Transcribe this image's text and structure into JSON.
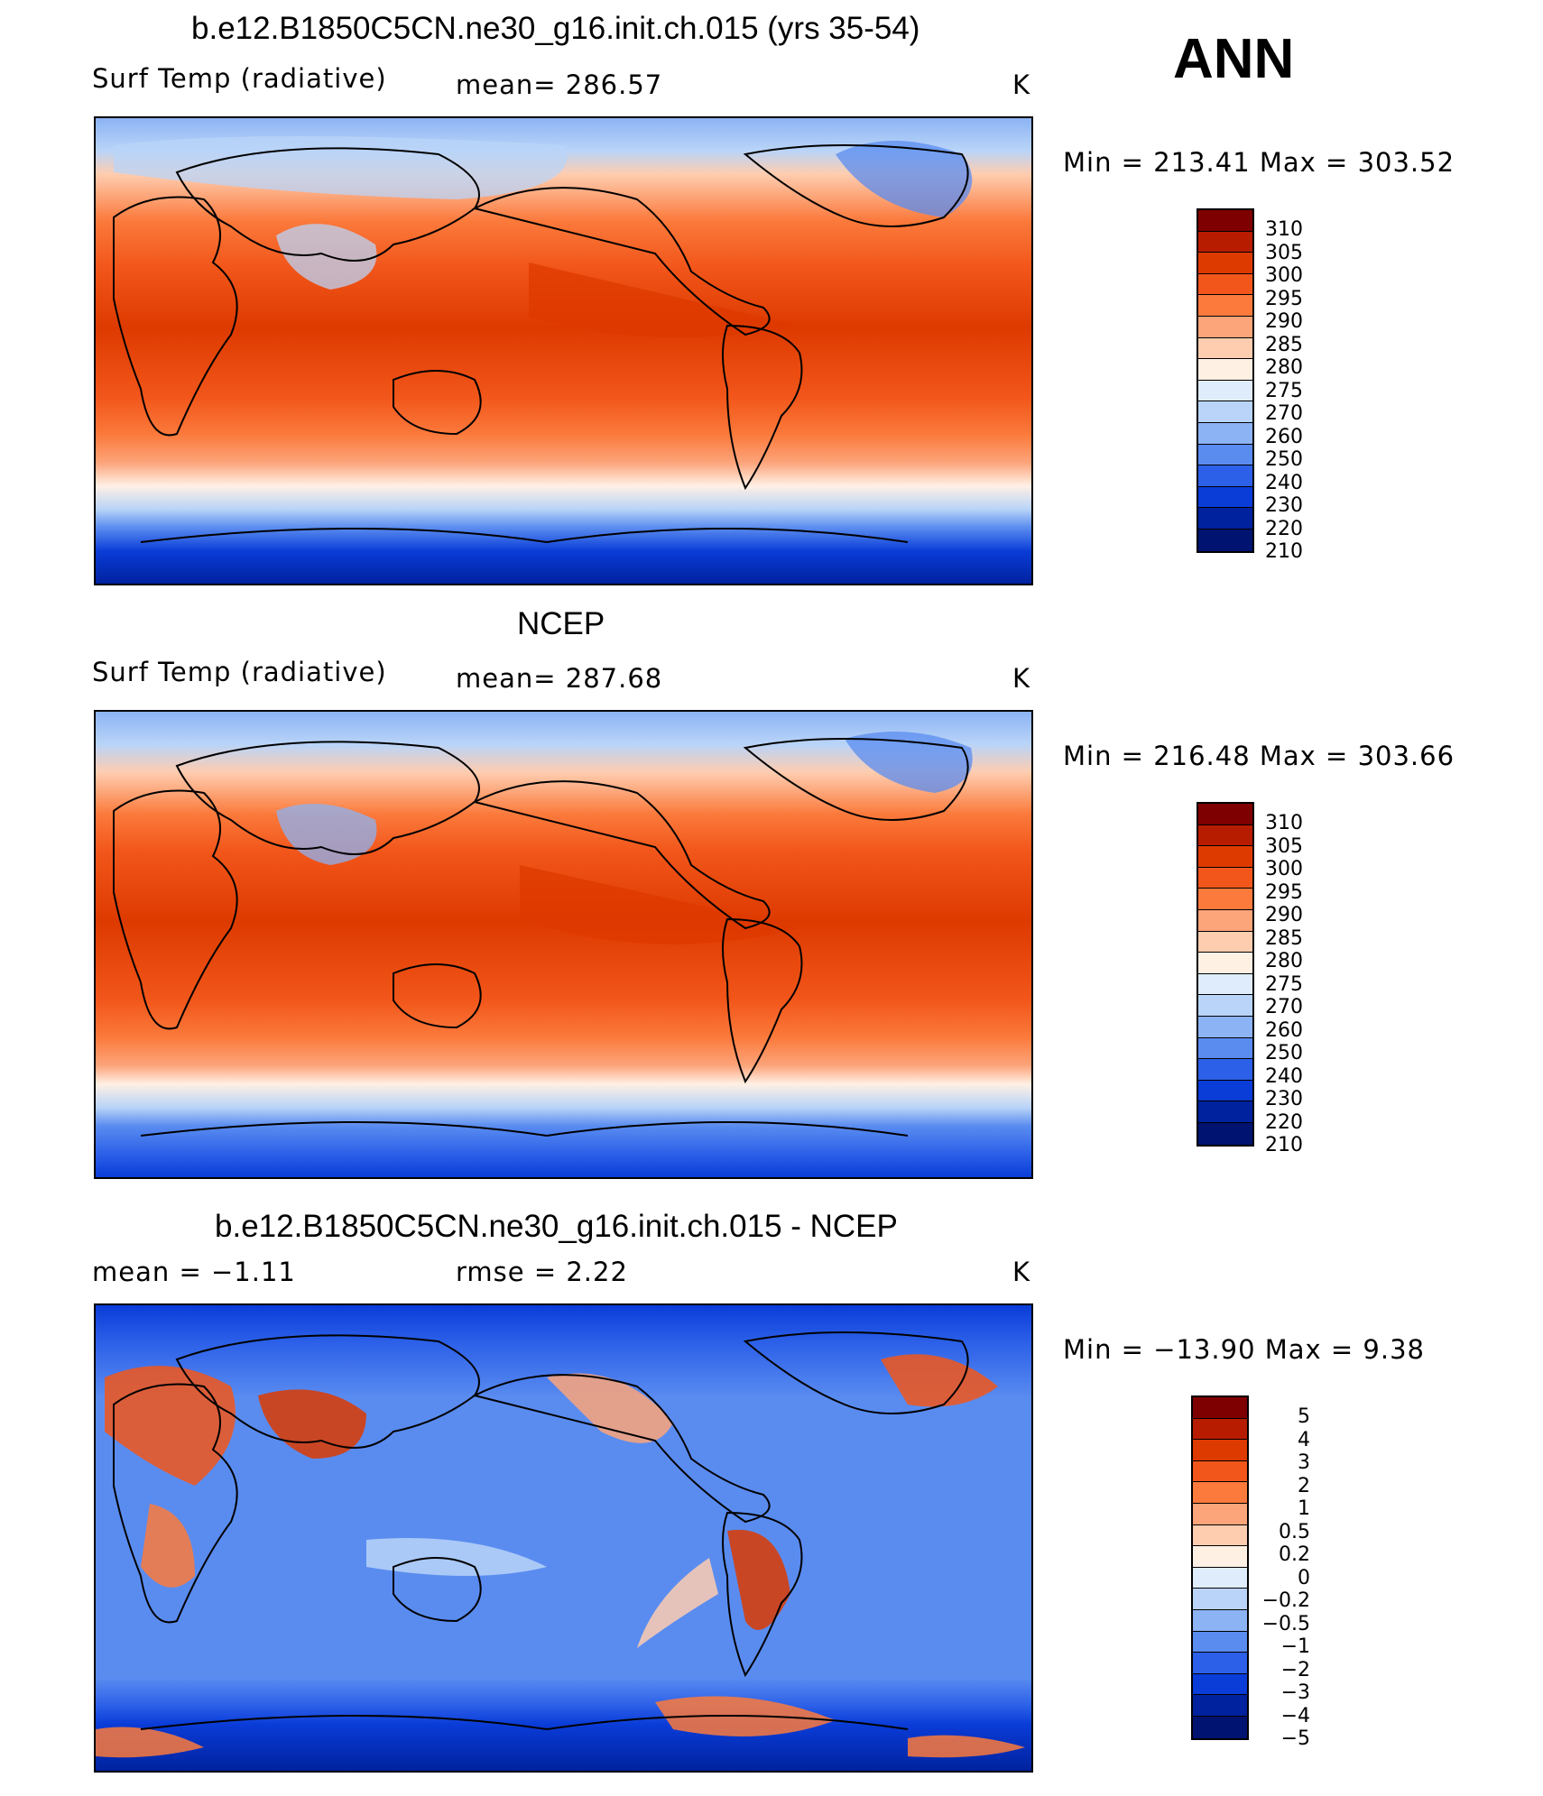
{
  "season": "ANN",
  "panels": [
    {
      "title": "b.e12.B1850C5CN.ne30_g16.init.ch.015 (yrs 35-54)",
      "left": "Surf Temp (radiative)",
      "mid": "mean=  286.57",
      "units": "K",
      "minmax": "Min  =  213.41  Max  =  303.52",
      "colorbar": {
        "labels": [
          "310",
          "305",
          "300",
          "295",
          "290",
          "285",
          "280",
          "275",
          "270",
          "260",
          "250",
          "240",
          "230",
          "220",
          "210"
        ],
        "colors": [
          "#7f0000",
          "#b81c00",
          "#dd3a00",
          "#f2561a",
          "#fb7a3c",
          "#fca47a",
          "#fecdb0",
          "#fff0e4",
          "#dfecfb",
          "#b9d4f8",
          "#8cb3f4",
          "#5a8cf0",
          "#2c60e8",
          "#0a3cd8",
          "#00229e",
          "#001370"
        ]
      }
    },
    {
      "title": "NCEP",
      "left": "Surf Temp (radiative)",
      "mid": "mean=  287.68",
      "units": "K",
      "minmax": "Min  =  216.48  Max  =  303.66",
      "colorbar": {
        "labels": [
          "310",
          "305",
          "300",
          "295",
          "290",
          "285",
          "280",
          "275",
          "270",
          "260",
          "250",
          "240",
          "230",
          "220",
          "210"
        ],
        "colors": [
          "#7f0000",
          "#b81c00",
          "#dd3a00",
          "#f2561a",
          "#fb7a3c",
          "#fca47a",
          "#fecdb0",
          "#fff0e4",
          "#dfecfb",
          "#b9d4f8",
          "#8cb3f4",
          "#5a8cf0",
          "#2c60e8",
          "#0a3cd8",
          "#00229e",
          "#001370"
        ]
      }
    },
    {
      "title": "b.e12.B1850C5CN.ne30_g16.init.ch.015 - NCEP",
      "left": "mean  =    −1.11",
      "mid": "rmse  =     2.22",
      "units": "K",
      "minmax": "Min  =  −13.90  Max  =     9.38",
      "colorbar": {
        "labels": [
          "5",
          "4",
          "3",
          "2",
          "1",
          "0.5",
          "0.2",
          "0",
          "−0.2",
          "−0.5",
          "−1",
          "−2",
          "−3",
          "−4",
          "−5"
        ],
        "colors": [
          "#7f0000",
          "#b81c00",
          "#dd3a00",
          "#f2561a",
          "#fb7a3c",
          "#fca47a",
          "#fecdb0",
          "#fff0e4",
          "#dfecfb",
          "#b9d4f8",
          "#8cb3f4",
          "#5a8cf0",
          "#2c60e8",
          "#0a3cd8",
          "#00229e",
          "#001370"
        ]
      }
    }
  ]
}
